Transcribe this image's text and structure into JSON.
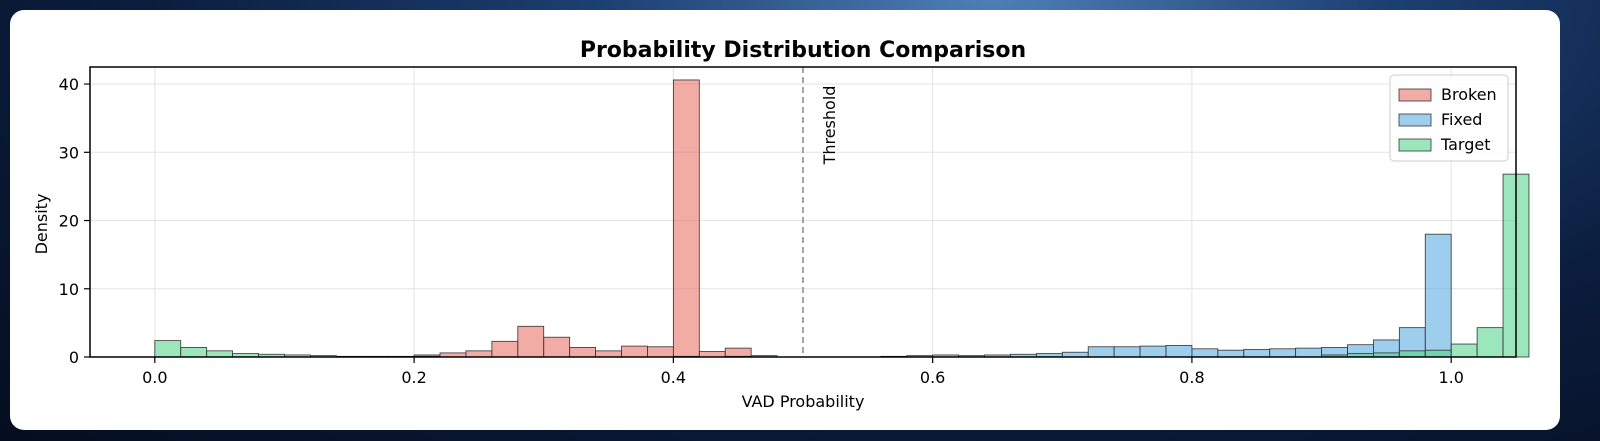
{
  "chart_data": {
    "type": "bar",
    "title": "Probability Distribution Comparison",
    "xlabel": "VAD Probability",
    "ylabel": "Density",
    "xlim": [
      -0.05,
      1.05
    ],
    "ylim": [
      0,
      42.5
    ],
    "xticks": [
      "0.0",
      "0.2",
      "0.4",
      "0.6",
      "0.8",
      "1.0"
    ],
    "xtick_values": [
      0.0,
      0.2,
      0.4,
      0.6,
      0.8,
      1.0
    ],
    "yticks": [
      "0",
      "10",
      "20",
      "30",
      "40"
    ],
    "ytick_values": [
      0,
      10,
      20,
      30,
      40
    ],
    "grid": true,
    "legend_position": "top-right",
    "bin_width": 0.02,
    "threshold": {
      "x": 0.5,
      "label": "Threshold"
    },
    "series": [
      {
        "name": "Broken",
        "color": "#e8746a",
        "bins": [
          [
            0.2,
            0.3
          ],
          [
            0.22,
            0.6
          ],
          [
            0.24,
            0.9
          ],
          [
            0.26,
            2.3
          ],
          [
            0.28,
            4.5
          ],
          [
            0.3,
            2.9
          ],
          [
            0.32,
            1.4
          ],
          [
            0.34,
            0.9
          ],
          [
            0.36,
            1.6
          ],
          [
            0.38,
            1.5
          ],
          [
            0.4,
            40.6
          ],
          [
            0.42,
            0.8
          ],
          [
            0.44,
            1.3
          ]
        ]
      },
      {
        "name": "Fixed",
        "color": "#5dade2",
        "bins": [
          [
            0.4,
            0.1
          ],
          [
            0.44,
            0.1
          ],
          [
            0.46,
            0.2
          ],
          [
            0.56,
            0.1
          ],
          [
            0.58,
            0.2
          ],
          [
            0.6,
            0.3
          ],
          [
            0.62,
            0.2
          ],
          [
            0.64,
            0.3
          ],
          [
            0.66,
            0.4
          ],
          [
            0.68,
            0.5
          ],
          [
            0.7,
            0.7
          ],
          [
            0.72,
            1.5
          ],
          [
            0.74,
            1.5
          ],
          [
            0.76,
            1.6
          ],
          [
            0.78,
            1.7
          ],
          [
            0.8,
            1.2
          ],
          [
            0.82,
            1.0
          ],
          [
            0.84,
            1.1
          ],
          [
            0.86,
            1.2
          ],
          [
            0.88,
            1.3
          ],
          [
            0.9,
            1.4
          ],
          [
            0.92,
            1.8
          ],
          [
            0.94,
            2.5
          ],
          [
            0.96,
            4.3
          ],
          [
            0.98,
            18.0
          ]
        ]
      },
      {
        "name": "Target",
        "color": "#58d68d",
        "bins": [
          [
            0.0,
            2.4
          ],
          [
            0.02,
            1.4
          ],
          [
            0.04,
            0.9
          ],
          [
            0.06,
            0.5
          ],
          [
            0.08,
            0.4
          ],
          [
            0.1,
            0.3
          ],
          [
            0.12,
            0.2
          ],
          [
            0.14,
            0.1
          ],
          [
            0.16,
            0.1
          ],
          [
            0.18,
            0.1
          ],
          [
            0.2,
            0.1
          ],
          [
            0.9,
            0.3
          ],
          [
            0.92,
            0.5
          ],
          [
            0.94,
            0.6
          ],
          [
            0.96,
            0.9
          ],
          [
            0.98,
            1.0
          ],
          [
            1.0,
            1.9
          ],
          [
            1.02,
            4.3
          ],
          [
            1.04,
            26.8
          ]
        ]
      }
    ]
  }
}
